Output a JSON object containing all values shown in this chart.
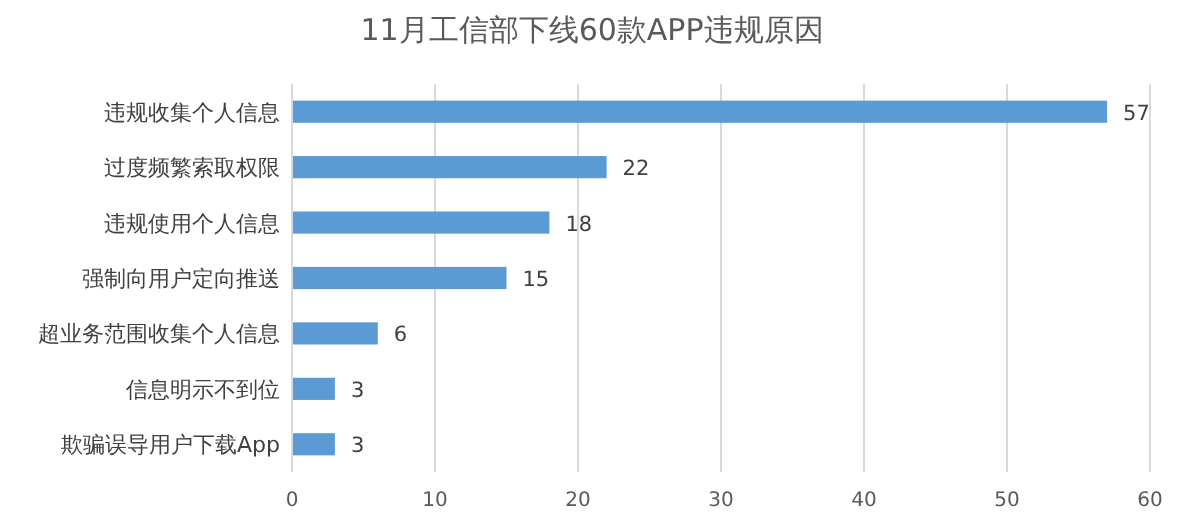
{
  "chart_data": {
    "type": "bar",
    "orientation": "horizontal",
    "title": "11月工信部下线60款APP违规原因",
    "categories": [
      "违规收集个人信息",
      "过度频繁索取权限",
      "违规使用个人信息",
      "强制向用户定向推送",
      "超业务范围收集个人信息",
      "信息明示不到位",
      "欺骗误导用户下载App"
    ],
    "values": [
      57,
      22,
      18,
      15,
      6,
      3,
      3
    ],
    "color": "#5b9bd5",
    "xlim": [
      0,
      60
    ],
    "xticks": [
      0,
      10,
      20,
      30,
      40,
      50,
      60
    ],
    "grid": "x",
    "data_labels": true
  }
}
